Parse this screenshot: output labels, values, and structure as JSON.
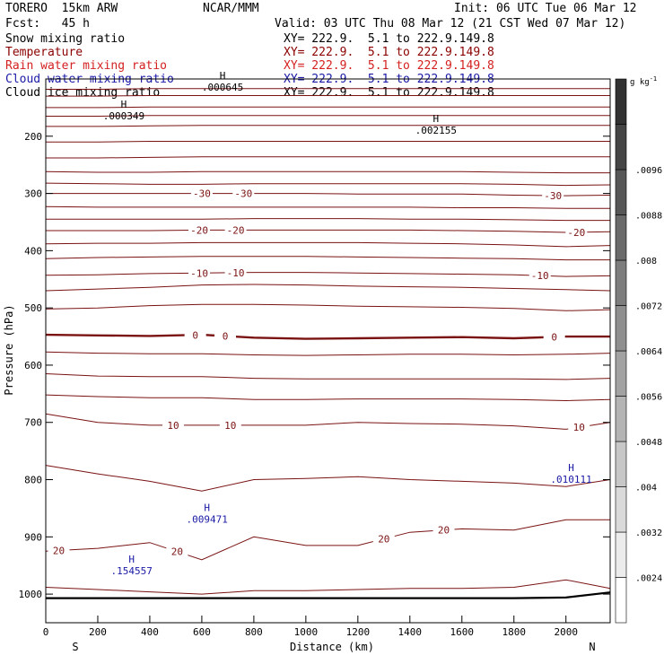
{
  "header": {
    "model": "TORERO  15km ARW",
    "center": "NCAR/MMM",
    "init": "Init: 06 UTC Tue 06 Mar 12",
    "fcst": "Fcst:   45 h",
    "valid": "Valid: 03 UTC Thu 08 Mar 12 (21 CST Wed 07 Mar 12)"
  },
  "fields": [
    {
      "name": "Snow mixing ratio",
      "xy": "XY= 222.9.  5.1 to 222.9.149.8",
      "color": "#000000"
    },
    {
      "name": "Temperature",
      "xy": "XY= 222.9.  5.1 to 222.9.149.8",
      "color": "#8b0000"
    },
    {
      "name": "Rain water mixing ratio",
      "xy": "XY= 222.9.  5.1 to 222.9.149.8",
      "color": "#d42020"
    },
    {
      "name": "Cloud water mixing ratio",
      "xy": "XY= 222.9.  5.1 to 222.9.149.8",
      "color": "#1a1aa6"
    },
    {
      "name": "Cloud ice mixing ratio",
      "xy": "XY= 222.9.  5.1 to 222.9.149.8",
      "color": "#000000"
    }
  ],
  "chart_data": {
    "type": "line",
    "xlabel": "Distance (km)",
    "ylabel": "Pressure (hPa)",
    "xlim": [
      0,
      2170
    ],
    "ylim": [
      1050,
      100
    ],
    "xticks": [
      0,
      200,
      400,
      600,
      800,
      1000,
      1200,
      1400,
      1600,
      1800,
      2000
    ],
    "yticks": [
      200,
      300,
      400,
      500,
      600,
      700,
      800,
      900,
      1000
    ],
    "x_end_labels": {
      "left": "S",
      "right": "N"
    },
    "colorbar": {
      "units": "g kg",
      "units_exp": "-1",
      "levels": [
        ".0024",
        ".0032",
        ".004",
        ".0048",
        ".0056",
        ".0064",
        ".0072",
        ".008",
        ".0088",
        ".0096"
      ]
    },
    "temperature_contour_labels": [
      {
        "value": "-30",
        "x": [
          600,
          760,
          1950
        ]
      },
      {
        "value": "-20",
        "x": [
          590,
          730,
          2040
        ]
      },
      {
        "value": "-10",
        "x": [
          590,
          730,
          1900
        ]
      },
      {
        "value": "0",
        "x": [
          575,
          690,
          1955
        ]
      },
      {
        "value": "10",
        "x": [
          490,
          710,
          2050
        ]
      },
      {
        "value": "20",
        "x": [
          50,
          505,
          1300,
          1530
        ]
      }
    ],
    "temperature_contours_x": [
      0,
      200,
      400,
      600,
      800,
      1000,
      1200,
      1400,
      1600,
      1800,
      2000,
      2170
    ],
    "temperature_contours_p": [
      [
        118,
        118,
        117,
        117,
        117,
        117,
        117,
        117,
        117,
        117,
        117,
        117
      ],
      [
        130,
        130,
        129,
        129,
        129,
        129,
        129,
        129,
        129,
        129,
        129,
        129
      ],
      [
        150,
        150,
        149,
        149,
        149,
        149,
        149,
        149,
        149,
        149,
        149,
        149
      ],
      [
        165,
        165,
        164,
        164,
        164,
        164,
        164,
        164,
        164,
        164,
        164,
        164
      ],
      [
        183,
        183,
        182,
        181,
        181,
        181,
        181,
        181,
        181,
        181,
        181,
        181
      ],
      [
        210,
        210,
        209,
        209,
        209,
        209,
        209,
        209,
        209,
        209,
        209,
        209
      ],
      [
        238,
        238,
        237,
        236,
        236,
        236,
        236,
        236,
        236,
        236,
        236,
        236
      ],
      [
        262,
        263,
        263,
        262,
        262,
        262,
        262,
        262,
        262,
        263,
        264,
        264
      ],
      [
        282,
        283,
        284,
        284,
        283,
        283,
        283,
        283,
        283,
        284,
        286,
        285
      ],
      [
        300,
        300,
        300,
        300,
        300,
        300,
        301,
        301,
        301,
        303,
        304,
        303
      ],
      [
        323,
        324,
        324,
        324,
        324,
        324,
        324,
        324,
        325,
        325,
        326,
        326
      ],
      [
        345,
        345,
        345,
        345,
        344,
        344,
        344,
        345,
        345,
        346,
        347,
        347
      ],
      [
        365,
        365,
        365,
        364,
        364,
        364,
        364,
        364,
        365,
        366,
        368,
        367
      ],
      [
        388,
        387,
        387,
        386,
        386,
        386,
        386,
        387,
        388,
        390,
        393,
        391
      ],
      [
        414,
        412,
        411,
        410,
        410,
        410,
        411,
        412,
        413,
        414,
        416,
        416
      ],
      [
        443,
        442,
        440,
        439,
        438,
        438,
        439,
        440,
        441,
        442,
        445,
        444
      ],
      [
        470,
        467,
        464,
        460,
        459,
        460,
        462,
        463,
        464,
        466,
        468,
        470
      ],
      [
        502,
        500,
        496,
        494,
        494,
        495,
        497,
        498,
        499,
        501,
        505,
        503
      ],
      [
        547,
        548,
        549,
        547,
        552,
        554,
        553,
        552,
        551,
        553,
        550,
        550
      ],
      [
        577,
        579,
        580,
        580,
        582,
        583,
        582,
        581,
        581,
        582,
        581,
        579
      ],
      [
        615,
        619,
        620,
        620,
        623,
        624,
        624,
        624,
        624,
        624,
        625,
        623
      ],
      [
        652,
        655,
        657,
        657,
        660,
        660,
        659,
        659,
        659,
        660,
        662,
        660
      ],
      [
        685,
        700,
        705,
        705,
        705,
        705,
        700,
        702,
        703,
        706,
        712,
        700
      ],
      [
        775,
        790,
        803,
        820,
        800,
        798,
        795,
        800,
        803,
        806,
        812,
        800
      ],
      [
        925,
        920,
        910,
        940,
        900,
        915,
        915,
        892,
        886,
        888,
        870,
        870
      ],
      [
        988,
        992,
        996,
        1000,
        994,
        994,
        992,
        990,
        990,
        988,
        975,
        990
      ]
    ],
    "freezing_level_index": 18,
    "ground_p": [
      1007,
      1007,
      1007,
      1007,
      1007,
      1007,
      1007,
      1007,
      1007,
      1007,
      1006,
      997
    ],
    "maxima": [
      {
        "label": "H",
        "value": ".000349",
        "x": 300,
        "p": 150
      },
      {
        "label": "H",
        "value": ".000645",
        "x": 680,
        "p": 100
      },
      {
        "label": "H",
        "value": ".002155",
        "x": 1500,
        "p": 175
      },
      {
        "label": "H",
        "value": ".009471",
        "x": 620,
        "p": 855,
        "color": "#1a1aa6"
      },
      {
        "label": "H",
        "value": ".010111",
        "x": 2020,
        "p": 785,
        "color": "#1a1aa6"
      },
      {
        "label": "H",
        "value": ".154557",
        "x": 330,
        "p": 945,
        "color": "#1a1aa6"
      }
    ]
  }
}
